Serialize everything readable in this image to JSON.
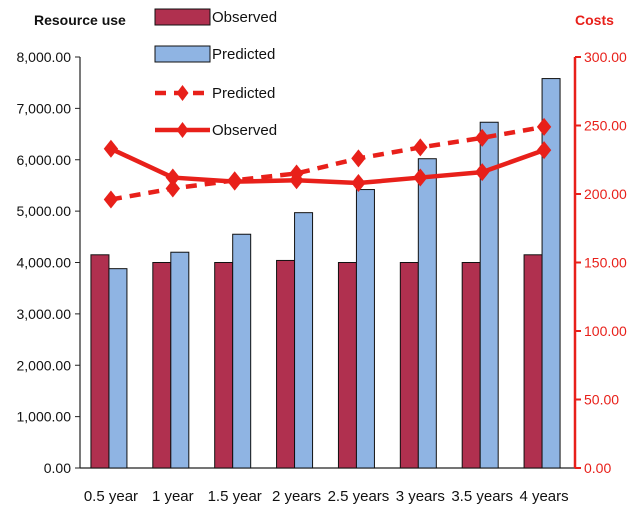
{
  "chart_data": {
    "type": "bar",
    "left_axis_title": "Resource use",
    "right_axis_title": "Costs",
    "categories": [
      "0.5 year",
      "1 year",
      "1.5 year",
      "2 years",
      "2.5 years",
      "3 years",
      "3.5 years",
      "4 years"
    ],
    "y_left": {
      "min": 0,
      "max": 8000,
      "step": 1000,
      "ticks": [
        "0.00",
        "1,000.00",
        "2,000.00",
        "3,000.00",
        "4,000.00",
        "5,000.00",
        "6,000.00",
        "7,000.00",
        "8,000.00"
      ]
    },
    "y_right": {
      "min": 0,
      "max": 300,
      "step": 50,
      "ticks": [
        "0.00",
        "50.00",
        "100.00",
        "150.00",
        "200.00",
        "250.00",
        "300.00"
      ]
    },
    "bar_series": [
      {
        "name": "Observed",
        "color": "#b0304f",
        "values": [
          4150,
          4000,
          4000,
          4040,
          4000,
          4000,
          4000,
          4150
        ]
      },
      {
        "name": "Predicted",
        "color": "#8fb4e3",
        "values": [
          3880,
          4200,
          4550,
          4970,
          5420,
          6020,
          6730,
          7580
        ]
      }
    ],
    "line_series": [
      {
        "name": "Predicted",
        "style": "dashed",
        "color": "#e8201a",
        "values": [
          196,
          204,
          210,
          215,
          226,
          234,
          241,
          249
        ]
      },
      {
        "name": "Observed",
        "style": "solid",
        "color": "#e8201a",
        "values": [
          233,
          212,
          209,
          210,
          208,
          212,
          216,
          232
        ]
      }
    ],
    "legend_placement": "top-center",
    "grid": false
  }
}
